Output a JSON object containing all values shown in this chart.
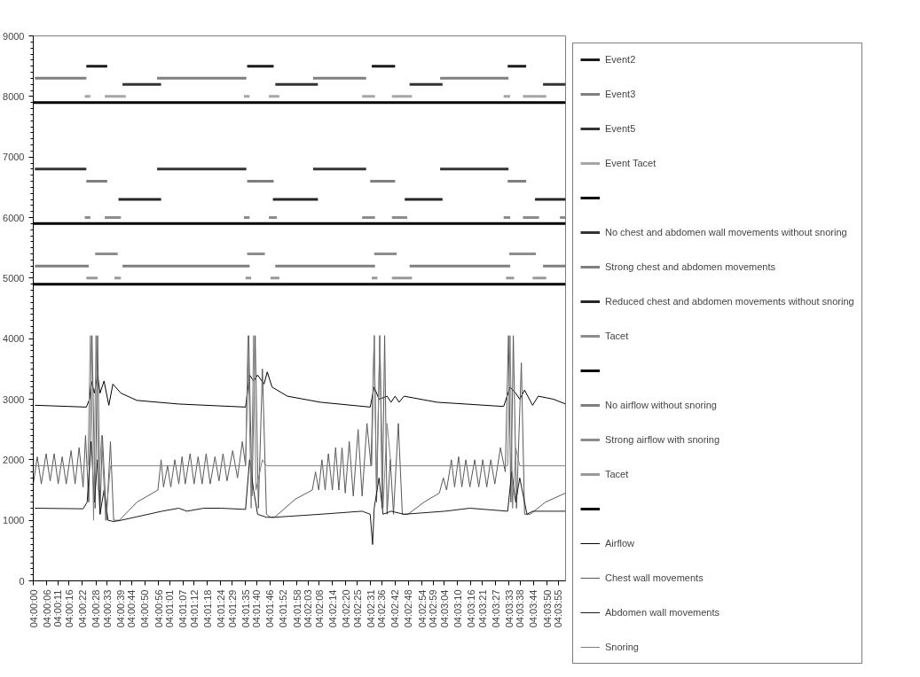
{
  "chart_data": {
    "type": "line",
    "legend": "right",
    "xlim": [
      4.0,
      4.0662
    ],
    "ylim": [
      0,
      9000
    ],
    "yticks": [
      0,
      1000,
      2000,
      3000,
      4000,
      5000,
      6000,
      7000,
      8000,
      9000
    ],
    "xticks": [
      {
        "value": 4.0,
        "label": "04:00:00"
      },
      {
        "value": 4.00167,
        "label": "04:00:06"
      },
      {
        "value": 4.00306,
        "label": "04:00:11"
      },
      {
        "value": 4.00444,
        "label": "04:00:16"
      },
      {
        "value": 4.00611,
        "label": "04:00:22"
      },
      {
        "value": 4.00778,
        "label": "04:00:28"
      },
      {
        "value": 4.00917,
        "label": "04:00:33"
      },
      {
        "value": 4.01083,
        "label": "04:00:39"
      },
      {
        "value": 4.01222,
        "label": "04:00:44"
      },
      {
        "value": 4.01389,
        "label": "04:00:50"
      },
      {
        "value": 4.01556,
        "label": "04:00:56"
      },
      {
        "value": 4.01694,
        "label": "04:01:01"
      },
      {
        "value": 4.01861,
        "label": "04:01:07"
      },
      {
        "value": 4.02,
        "label": "04:01:12"
      },
      {
        "value": 4.02167,
        "label": "04:01:18"
      },
      {
        "value": 4.02333,
        "label": "04:01:24"
      },
      {
        "value": 4.02472,
        "label": "04:01:29"
      },
      {
        "value": 4.02639,
        "label": "04:01:35"
      },
      {
        "value": 4.02778,
        "label": "04:01:40"
      },
      {
        "value": 4.02944,
        "label": "04:01:46"
      },
      {
        "value": 4.03111,
        "label": "04:01:52"
      },
      {
        "value": 4.03278,
        "label": "04:01:58"
      },
      {
        "value": 4.03417,
        "label": "04:02:03"
      },
      {
        "value": 4.03556,
        "label": "04:02:08"
      },
      {
        "value": 4.03722,
        "label": "04:02:14"
      },
      {
        "value": 4.03889,
        "label": "04:02:20"
      },
      {
        "value": 4.04028,
        "label": "04:02:25"
      },
      {
        "value": 4.04194,
        "label": "04:02:31"
      },
      {
        "value": 4.04333,
        "label": "04:02:36"
      },
      {
        "value": 4.045,
        "label": "04:02:42"
      },
      {
        "value": 4.04667,
        "label": "04:02:48"
      },
      {
        "value": 4.04833,
        "label": "04:02:54"
      },
      {
        "value": 4.04972,
        "label": "04:02:59"
      },
      {
        "value": 4.05111,
        "label": "04:03:04"
      },
      {
        "value": 4.05278,
        "label": "04:03:10"
      },
      {
        "value": 4.05444,
        "label": "04:03:16"
      },
      {
        "value": 4.05583,
        "label": "04:03:21"
      },
      {
        "value": 4.0575,
        "label": "04:03:27"
      },
      {
        "value": 4.05917,
        "label": "04:03:33"
      },
      {
        "value": 4.06056,
        "label": "04:03:38"
      },
      {
        "value": 4.06222,
        "label": "04:03:44"
      },
      {
        "value": 4.06389,
        "label": "04:03:50"
      },
      {
        "value": 4.06528,
        "label": "04:03:55"
      }
    ],
    "series": [
      {
        "name": "Event2",
        "type": "step",
        "color": "#1a1a1a",
        "x": [
          4.0066,
          4.0092,
          4.0093,
          4.0266,
          4.0299,
          4.03,
          4.0421,
          4.045,
          4.0451,
          4.059,
          4.0613
        ],
        "values": [
          8500,
          8500,
          null,
          8500,
          8500,
          null,
          8500,
          8500,
          null,
          8500,
          8500
        ]
      },
      {
        "name": "Event3",
        "type": "step",
        "color": "#7f7f7f",
        "x": [
          4.0002,
          4.0066,
          4.0067,
          4.0154,
          4.0265,
          4.0266,
          4.0348,
          4.0414,
          4.0415,
          4.0506,
          4.0591
        ],
        "values": [
          8300,
          8300,
          null,
          8300,
          8300,
          null,
          8300,
          8300,
          null,
          8300,
          8300
        ]
      },
      {
        "name": "Event5",
        "type": "step",
        "color": "#333333",
        "x": [
          4.0111,
          4.0159,
          4.016,
          4.0301,
          4.0354,
          4.0355,
          4.0468,
          4.0509,
          4.051,
          4.0634,
          4.0662
        ],
        "values": [
          8200,
          8200,
          null,
          8200,
          8200,
          null,
          8200,
          8200,
          null,
          8200,
          8200
        ]
      },
      {
        "name": "Event Tacet",
        "type": "step",
        "color": "#a6a6a6",
        "x": [
          4.0064,
          4.0071,
          4.0072,
          4.0089,
          4.0115,
          4.0116,
          4.0262,
          4.0269,
          4.027,
          4.0293,
          4.0306,
          4.0307,
          4.0409,
          4.0425,
          4.0426,
          4.0446,
          4.0471,
          4.0472,
          4.0585,
          4.0593,
          4.0594,
          4.0609,
          4.0638
        ],
        "values": [
          8000,
          8000,
          null,
          8000,
          8000,
          null,
          8000,
          8000,
          null,
          8000,
          8000,
          null,
          8000,
          8000,
          null,
          8000,
          8000,
          null,
          8000,
          8000,
          null,
          8000,
          8000
        ]
      },
      {
        "type": "step",
        "color": "#000000",
        "x": [
          4.0,
          4.0662
        ],
        "values": [
          7900,
          7900
        ]
      },
      {
        "name": "No chest and abdomen wall movements without snoring",
        "type": "step",
        "color": "#333333",
        "x": [
          4.0002,
          4.0066,
          4.0067,
          4.0154,
          4.0265,
          4.0266,
          4.0348,
          4.0414,
          4.0415,
          4.0506,
          4.0591
        ],
        "values": [
          6800,
          6800,
          null,
          6800,
          6800,
          null,
          6800,
          6800,
          null,
          6800,
          6800
        ]
      },
      {
        "name": "Strong chest and abdomen movements",
        "type": "step",
        "color": "#7f7f7f",
        "x": [
          4.0066,
          4.0092,
          4.0093,
          4.0266,
          4.0299,
          4.03,
          4.0419,
          4.045,
          4.0451,
          4.059,
          4.0613
        ],
        "values": [
          6600,
          6600,
          null,
          6600,
          6600,
          null,
          6600,
          6600,
          null,
          6600,
          6600
        ]
      },
      {
        "name": "Reduced chest and abdomen movements without snoring",
        "type": "step",
        "color": "#262626",
        "x": [
          4.0106,
          4.0159,
          4.016,
          4.0298,
          4.0354,
          4.0355,
          4.0462,
          4.0509,
          4.051,
          4.0624,
          4.0662
        ],
        "values": [
          6300,
          6300,
          null,
          6300,
          6300,
          null,
          6300,
          6300,
          null,
          6300,
          6300
        ]
      },
      {
        "name": "Tacet",
        "type": "step",
        "color": "#8c8c8c",
        "x": [
          4.0064,
          4.0071,
          4.0072,
          4.0089,
          4.0109,
          4.011,
          4.0262,
          4.0269,
          4.027,
          4.0293,
          4.0303,
          4.0304,
          4.0409,
          4.0425,
          4.0426,
          4.0446,
          4.0465,
          4.0466,
          4.0585,
          4.0593,
          4.0594,
          4.0609,
          4.0629,
          4.063,
          4.0655,
          4.0662
        ],
        "values": [
          6000,
          6000,
          null,
          6000,
          6000,
          null,
          6000,
          6000,
          null,
          6000,
          6000,
          null,
          6000,
          6000,
          null,
          6000,
          6000,
          null,
          6000,
          6000,
          null,
          6000,
          6000,
          null,
          6000,
          6000
        ]
      },
      {
        "type": "step",
        "color": "#000000",
        "x": [
          4.0,
          4.0662
        ],
        "values": [
          5900,
          5900
        ]
      },
      {
        "name": "No airflow without snoring",
        "type": "step",
        "color": "#7f7f7f",
        "x": [
          4.0002,
          4.0069,
          4.007,
          4.0111,
          4.0269,
          4.027,
          4.0301,
          4.0425,
          4.0426,
          4.0468,
          4.0593,
          4.0594,
          4.0634,
          4.0662
        ],
        "values": [
          5200,
          5200,
          null,
          5200,
          5200,
          null,
          5200,
          5200,
          null,
          5200,
          5200,
          null,
          5200,
          5200
        ]
      },
      {
        "name": "Strong airflow with snoring",
        "type": "step",
        "color": "#8c8c8c",
        "x": [
          4.0077,
          4.0105,
          4.0106,
          4.0266,
          4.0288,
          4.0289,
          4.0424,
          4.0452,
          4.0453,
          4.0592,
          4.0625
        ],
        "values": [
          5400,
          5400,
          null,
          5400,
          5400,
          null,
          5400,
          5400,
          null,
          5400,
          5400
        ]
      },
      {
        "name": "Tacet",
        "type": "step",
        "color": "#999999",
        "x": [
          4.0066,
          4.008,
          4.0081,
          4.0101,
          4.0109,
          4.011,
          4.0264,
          4.0271,
          4.0272,
          4.0295,
          4.0306,
          4.0307,
          4.0421,
          4.0428,
          4.0429,
          4.0446,
          4.0471,
          4.0472,
          4.0588,
          4.0598,
          4.0599,
          4.0621,
          4.0638
        ],
        "values": [
          5000,
          5000,
          null,
          5000,
          5000,
          null,
          5000,
          5000,
          null,
          5000,
          5000,
          null,
          5000,
          5000,
          null,
          5000,
          5000,
          null,
          5000,
          5000,
          null,
          5000,
          5000
        ]
      },
      {
        "type": "step",
        "color": "#000000",
        "x": [
          4.0,
          4.0662
        ],
        "values": [
          4900,
          4900
        ]
      },
      {
        "name": "Airflow",
        "color": "#000000",
        "x": [
          4.0002,
          4.0066,
          4.007,
          4.0072,
          4.0076,
          4.008,
          4.0083,
          4.0088,
          4.0094,
          4.0099,
          4.0109,
          4.0129,
          4.0181,
          4.0264,
          4.0269,
          4.0274,
          4.0279,
          4.0287,
          4.0291,
          4.0297,
          4.0316,
          4.0357,
          4.0419,
          4.0424,
          4.043,
          4.044,
          4.0445,
          4.045,
          4.0455,
          4.0461,
          4.0502,
          4.0585,
          4.0593,
          4.06,
          4.0605,
          4.0611,
          4.0621,
          4.0628,
          4.0647,
          4.0662
        ],
        "values": [
          2900,
          2870,
          3000,
          3300,
          3100,
          3400,
          3100,
          3300,
          2900,
          3250,
          3100,
          2980,
          2920,
          2870,
          3400,
          3300,
          3400,
          3250,
          3450,
          3200,
          3050,
          2950,
          2870,
          3200,
          3000,
          3050,
          2950,
          3050,
          2950,
          3050,
          2950,
          2880,
          3200,
          3100,
          3000,
          3150,
          2900,
          3050,
          3000,
          2920
        ]
      },
      {
        "name": "Chest wall movements",
        "color": "#595959",
        "x": [
          4.0,
          4.0005,
          4.001,
          4.0016,
          4.0021,
          4.0026,
          4.0031,
          4.0036,
          4.0041,
          4.0047,
          4.0052,
          4.0057,
          4.0062,
          4.0065,
          4.0069,
          4.0073,
          4.0077,
          4.008,
          4.0083,
          4.0086,
          4.0091,
          4.0096,
          4.01,
          4.0107,
          4.0129,
          4.0155,
          4.0159,
          4.0162,
          4.0167,
          4.0171,
          4.0176,
          4.0181,
          4.0185,
          4.0189,
          4.0195,
          4.02,
          4.0205,
          4.021,
          4.0215,
          4.022,
          4.0226,
          4.0231,
          4.0236,
          4.0241,
          4.0248,
          4.0254,
          4.026,
          4.0264,
          4.0268,
          4.0272,
          4.0276,
          4.028,
          4.0285,
          4.029,
          4.0295,
          4.03,
          4.0326,
          4.0347,
          4.0351,
          4.0355,
          4.0359,
          4.0363,
          4.0367,
          4.0372,
          4.0376,
          4.038,
          4.0384,
          4.0388,
          4.0393,
          4.0398,
          4.0404,
          4.0409,
          4.0415,
          4.042,
          4.0424,
          4.0427,
          4.0431,
          4.0434,
          4.0437,
          4.044,
          4.0444,
          4.0448,
          4.0454,
          4.0459,
          4.0466,
          4.0486,
          4.0505,
          4.051,
          4.0514,
          4.052,
          4.0524,
          4.0529,
          4.0533,
          4.0538,
          4.0543,
          4.0549,
          4.0554,
          4.0559,
          4.0564,
          4.0569,
          4.0574,
          4.0581,
          4.0587,
          4.0591,
          4.0594,
          4.0597,
          4.0601,
          4.0607,
          4.0611,
          4.0618,
          4.0637,
          4.0662
        ],
        "values": [
          1600,
          2050,
          1600,
          2100,
          1650,
          2100,
          1600,
          2050,
          1600,
          2150,
          1600,
          2200,
          1550,
          2400,
          1300,
          4050,
          1200,
          4050,
          1100,
          2400,
          1000,
          2300,
          1000,
          1000,
          1300,
          1500,
          2000,
          1550,
          1900,
          1550,
          2000,
          1600,
          2050,
          1600,
          2100,
          1600,
          2050,
          1600,
          2100,
          1600,
          2050,
          1650,
          2100,
          1650,
          2150,
          1700,
          2300,
          1900,
          4050,
          1400,
          4050,
          1200,
          3500,
          1100,
          1050,
          1050,
          1350,
          1500,
          1800,
          1500,
          2000,
          1500,
          2100,
          1500,
          2200,
          1500,
          2200,
          1450,
          2300,
          1400,
          2500,
          1400,
          2600,
          1900,
          4050,
          1300,
          4050,
          1200,
          4050,
          1100,
          2000,
          1100,
          2600,
          1100,
          1100,
          1300,
          1450,
          1700,
          1500,
          2000,
          1550,
          2050,
          1550,
          2000,
          1550,
          2000,
          1550,
          2000,
          1550,
          2000,
          1600,
          2200,
          1800,
          4050,
          1300,
          4050,
          1200,
          3600,
          1100,
          1100,
          1300,
          1450
        ]
      },
      {
        "name": "Abdomen wall movements",
        "color": "#1a1a1a",
        "x": [
          4.0002,
          4.0062,
          4.0067,
          4.0072,
          4.0076,
          4.008,
          4.0083,
          4.0088,
          4.0093,
          4.01,
          4.0109,
          4.016,
          4.0181,
          4.0191,
          4.0212,
          4.0233,
          4.0264,
          4.0269,
          4.0274,
          4.0279,
          4.029,
          4.03,
          4.0357,
          4.0409,
          4.0419,
          4.0422,
          4.0424,
          4.043,
          4.0435,
          4.0445,
          4.0461,
          4.0512,
          4.0543,
          4.059,
          4.0595,
          4.06,
          4.0605,
          4.0614,
          4.0621,
          4.0662
        ],
        "values": [
          1200,
          1190,
          1300,
          2300,
          1300,
          2000,
          1100,
          1500,
          1000,
          980,
          1000,
          1150,
          1200,
          1150,
          1200,
          1200,
          1180,
          2000,
          1500,
          1100,
          1050,
          1050,
          1100,
          1150,
          1100,
          600,
          1200,
          1700,
          1100,
          1150,
          1100,
          1150,
          1200,
          1150,
          1800,
          1300,
          1700,
          1100,
          1150,
          1150
        ]
      },
      {
        "name": "Snoring",
        "color": "#808080",
        "x": [
          4.0,
          4.0065,
          4.0068,
          4.0071,
          4.0075,
          4.0078,
          4.0081,
          4.0085,
          4.009,
          4.0096,
          4.0264,
          4.0267,
          4.0271,
          4.0274,
          4.0277,
          4.0285,
          4.029,
          4.0421,
          4.0424,
          4.0427,
          4.0431,
          4.0435,
          4.044,
          4.0445,
          4.059,
          4.0593,
          4.0596,
          4.06,
          4.0605,
          4.0662
        ],
        "values": [
          1900,
          1900,
          1900,
          4050,
          1000,
          4050,
          1500,
          2400,
          1000,
          1900,
          1900,
          4050,
          1200,
          4050,
          1500,
          2000,
          1900,
          1900,
          4050,
          1500,
          4050,
          1200,
          2600,
          1900,
          1900,
          4050,
          1200,
          2200,
          1900,
          1900
        ]
      }
    ]
  }
}
